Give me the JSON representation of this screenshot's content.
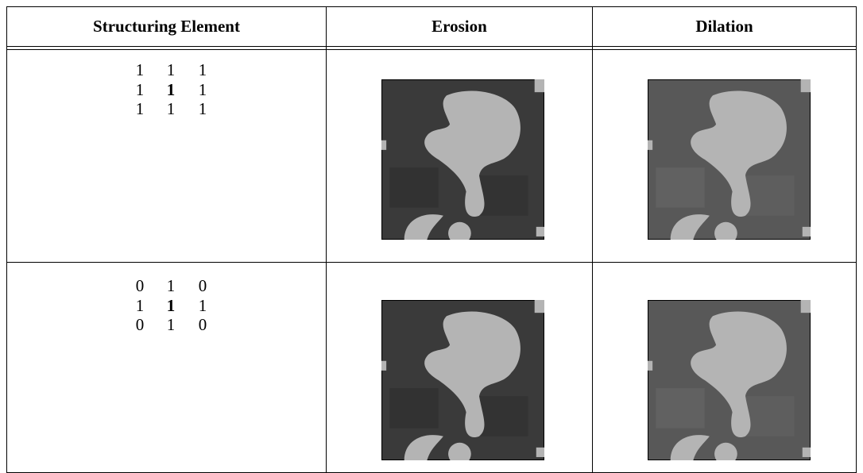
{
  "table": {
    "headers": [
      "Structuring Element",
      "Erosion",
      "Dilation"
    ],
    "rows": [
      [
        [
          1,
          1,
          1
        ],
        [
          1,
          1,
          1
        ],
        [
          1,
          1,
          1
        ]
      ],
      [
        [
          0,
          1,
          0
        ],
        [
          1,
          1,
          1
        ],
        [
          0,
          1,
          0
        ]
      ]
    ]
  }
}
